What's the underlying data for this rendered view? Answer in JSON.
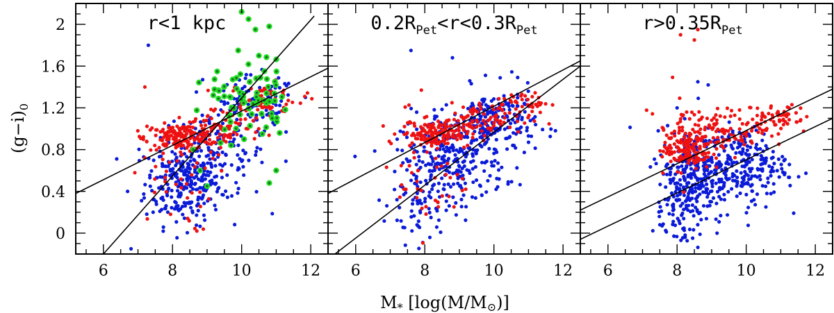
{
  "chart_data": {
    "type": "scatter",
    "xlabel": "M",
    "xlabel_sub": "*",
    "xlabel_rest": " [log(M/M",
    "xlabel_sun": "⊙",
    "xlabel_end": ")]",
    "ylabel": "(g−i)",
    "ylabel_sub": "0",
    "xlim": [
      5.2,
      12.5
    ],
    "ylim": [
      -0.2,
      2.2
    ],
    "xticks": [
      6,
      8,
      10,
      12
    ],
    "yticks": [
      0,
      0.4,
      0.8,
      1.2,
      1.6,
      2
    ],
    "ytick_labels": [
      "0",
      "0.4",
      "0.8",
      "1.2",
      "1.6",
      "2"
    ],
    "colors": {
      "blue": "#0a1ad8",
      "red": "#ee1111",
      "green": "#22dd22",
      "dark": "#1a6a2a"
    },
    "panels": [
      {
        "title_main": "r<1 kpc",
        "title_sub": "",
        "title_end": "",
        "title_sub2": "",
        "lines": [
          [
            5.2,
            0.38,
            12.5,
            1.58
          ],
          [
            6.0,
            -0.2,
            12.1,
            2.08
          ]
        ],
        "series": [
          {
            "color": "blue",
            "clusters": [
              [
                8.3,
                0.48,
                0.55,
                0.2,
                220
              ],
              [
                9.2,
                0.75,
                0.75,
                0.22,
                160
              ],
              [
                10.4,
                1.2,
                0.6,
                0.15,
                90
              ]
            ],
            "extra": [
              [
                7.3,
                1.8
              ],
              [
                6.7,
                0.4
              ],
              [
                6.8,
                -0.15
              ]
            ]
          },
          {
            "color": "red",
            "clusters": [
              [
                8.2,
                0.92,
                0.5,
                0.06,
                150
              ],
              [
                9.3,
                1.0,
                0.7,
                0.1,
                80
              ],
              [
                10.6,
                1.28,
                0.6,
                0.08,
                60
              ],
              [
                8.0,
                0.5,
                0.6,
                0.25,
                40
              ]
            ],
            "extra": [
              [
                7.2,
                1.4
              ],
              [
                7.2,
                0.72
              ]
            ]
          },
          {
            "color": "green",
            "clusters": [
              [
                10.3,
                1.3,
                0.5,
                0.18,
                60
              ],
              [
                9.6,
                1.15,
                0.4,
                0.2,
                15
              ]
            ],
            "extra": [
              [
                10.0,
                2.12
              ],
              [
                10.2,
                2.05
              ],
              [
                10.4,
                1.95
              ],
              [
                10.8,
                1.98
              ],
              [
                9.9,
                1.75
              ],
              [
                10.5,
                1.7
              ],
              [
                8.8,
                0.6
              ],
              [
                8.6,
                0.8
              ],
              [
                9.0,
                0.45
              ],
              [
                10.6,
                0.95
              ],
              [
                11.1,
                0.96
              ],
              [
                11.0,
                0.6
              ],
              [
                10.8,
                0.48
              ]
            ]
          }
        ]
      },
      {
        "title_main": "0.2R",
        "title_sub": "Pet",
        "title_end": "<r<0.3R",
        "title_sub2": "Pet",
        "lines": [
          [
            5.2,
            0.38,
            12.5,
            1.65
          ],
          [
            5.4,
            -0.2,
            12.5,
            1.6
          ]
        ],
        "series": [
          {
            "color": "blue",
            "clusters": [
              [
                8.8,
                0.7,
                0.75,
                0.22,
                260
              ],
              [
                10.0,
                1.05,
                0.6,
                0.17,
                200
              ],
              [
                7.8,
                0.3,
                0.4,
                0.2,
                60
              ]
            ],
            "extra": [
              [
                7.6,
                1.75
              ],
              [
                8.8,
                1.68
              ],
              [
                7.2,
                0.9
              ]
            ]
          },
          {
            "color": "red",
            "clusters": [
              [
                8.3,
                0.95,
                0.5,
                0.06,
                140
              ],
              [
                9.5,
                1.08,
                0.8,
                0.08,
                90
              ],
              [
                10.8,
                1.25,
                0.4,
                0.05,
                40
              ],
              [
                8.2,
                0.5,
                0.5,
                0.25,
                40
              ]
            ],
            "extra": [
              [
                7.9,
                1.37
              ]
            ]
          }
        ]
      },
      {
        "title_main": "r>0.35R",
        "title_sub": "Pet",
        "title_end": "",
        "title_sub2": "",
        "lines": [
          [
            5.2,
            0.22,
            12.5,
            1.38
          ],
          [
            5.2,
            -0.06,
            12.5,
            1.1
          ]
        ],
        "series": [
          {
            "color": "blue",
            "clusters": [
              [
                8.5,
                0.55,
                0.55,
                0.22,
                260
              ],
              [
                9.9,
                0.65,
                0.65,
                0.18,
                220
              ],
              [
                8.0,
                0.2,
                0.35,
                0.2,
                60
              ]
            ],
            "extra": [
              [
                8.6,
                1.45
              ],
              [
                8.9,
                1.42
              ],
              [
                8.0,
                1.2
              ]
            ]
          },
          {
            "color": "red",
            "clusters": [
              [
                8.3,
                0.8,
                0.35,
                0.1,
                140
              ],
              [
                9.6,
                1.0,
                0.8,
                0.09,
                110
              ],
              [
                10.9,
                1.12,
                0.4,
                0.06,
                50
              ],
              [
                8.0,
                1.0,
                0.3,
                0.2,
                30
              ]
            ],
            "extra": [
              [
                8.1,
                1.9
              ],
              [
                8.6,
                1.95
              ],
              [
                8.5,
                1.85
              ]
            ]
          }
        ]
      }
    ]
  }
}
